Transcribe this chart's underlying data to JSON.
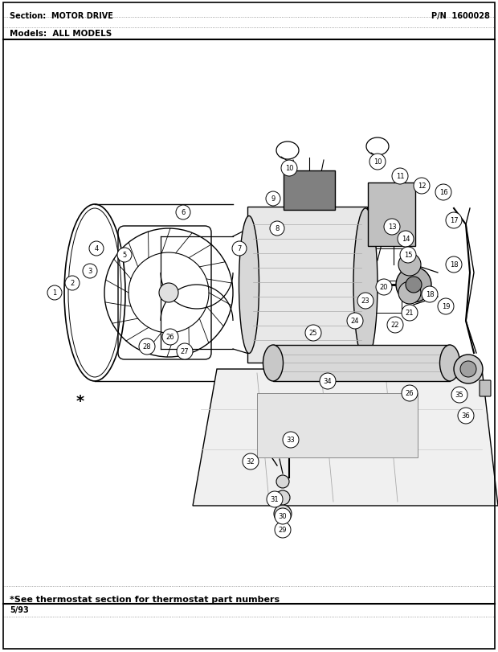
{
  "section_label": "Section:  MOTOR DRIVE",
  "pn_label": "P/N  1600028",
  "models_label": "Models:  ALL MODELS",
  "footer_note": "*See thermostat section for thermostat part numbers",
  "footer_date": "5/93",
  "bg_color": "#ffffff",
  "fig_width": 6.2,
  "fig_height": 8.12,
  "dpi": 100
}
